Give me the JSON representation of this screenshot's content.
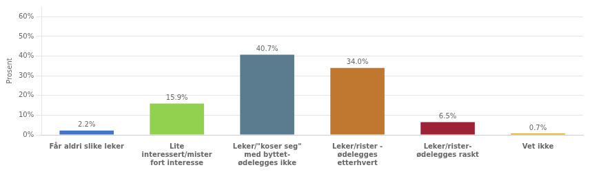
{
  "chart_data": {
    "type": "bar",
    "categories": [
      "Får aldri slike leker",
      "Lite\ninteressert/mister\nfort interesse",
      "Leker/\"koser seg\"\nmed byttet-\nødelegges ikke",
      "Leker/rister -\nødelegges\netterhvert",
      "Leker/rister-\nødelegges raskt",
      "Vet ikke"
    ],
    "values": [
      2.2,
      15.9,
      40.7,
      34.0,
      6.5,
      0.7
    ],
    "value_labels": [
      "2.2%",
      "15.9%",
      "40.7%",
      "34.0%",
      "6.5%",
      "0.7%"
    ],
    "data_labels": true,
    "colors": [
      "#4472C4",
      "#92D050",
      "#5B7B8E",
      "#C07830",
      "#9B2335",
      "#DAA520"
    ],
    "ylabel": "Prosent",
    "ylim": [
      0,
      65
    ],
    "yticks": [
      {
        "value": 0,
        "label": "0%"
      },
      {
        "value": 10,
        "label": "10%"
      },
      {
        "value": 20,
        "label": "20%"
      },
      {
        "value": 30,
        "label": "30%"
      },
      {
        "value": 40,
        "label": "40%"
      },
      {
        "value": 50,
        "label": "50%"
      },
      {
        "value": 60,
        "label": "60%"
      }
    ],
    "grid": true
  }
}
